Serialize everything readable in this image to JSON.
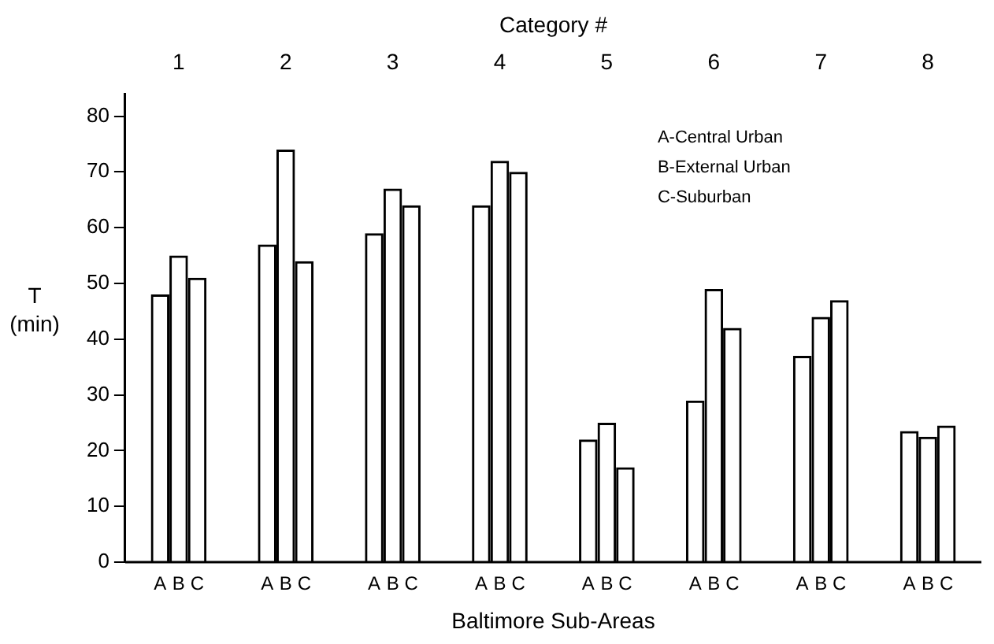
{
  "chart_data": {
    "type": "bar",
    "x2label": "Category #",
    "xlabel": "Baltimore Sub-Areas",
    "ylabel": "T (min)",
    "categories": [
      "1",
      "2",
      "3",
      "4",
      "5",
      "6",
      "7",
      "8"
    ],
    "series": [
      {
        "name": "A",
        "color": "#000000",
        "values": [
          48,
          57,
          59,
          64,
          22,
          29,
          37,
          23.5
        ]
      },
      {
        "name": "B",
        "color": "#000000",
        "values": [
          55,
          74,
          67,
          72,
          25,
          49,
          44,
          22.5
        ]
      },
      {
        "name": "C",
        "color": "#000000",
        "values": [
          51,
          54,
          64,
          70,
          17,
          42,
          47,
          24.5
        ]
      }
    ],
    "ylim": [
      0,
      84
    ],
    "yticks": [
      0,
      10,
      20,
      30,
      40,
      50,
      60,
      70,
      80
    ],
    "legend": false,
    "annotations": [
      "A-Central Urban",
      "B-External Urban",
      "C-Suburban"
    ]
  }
}
